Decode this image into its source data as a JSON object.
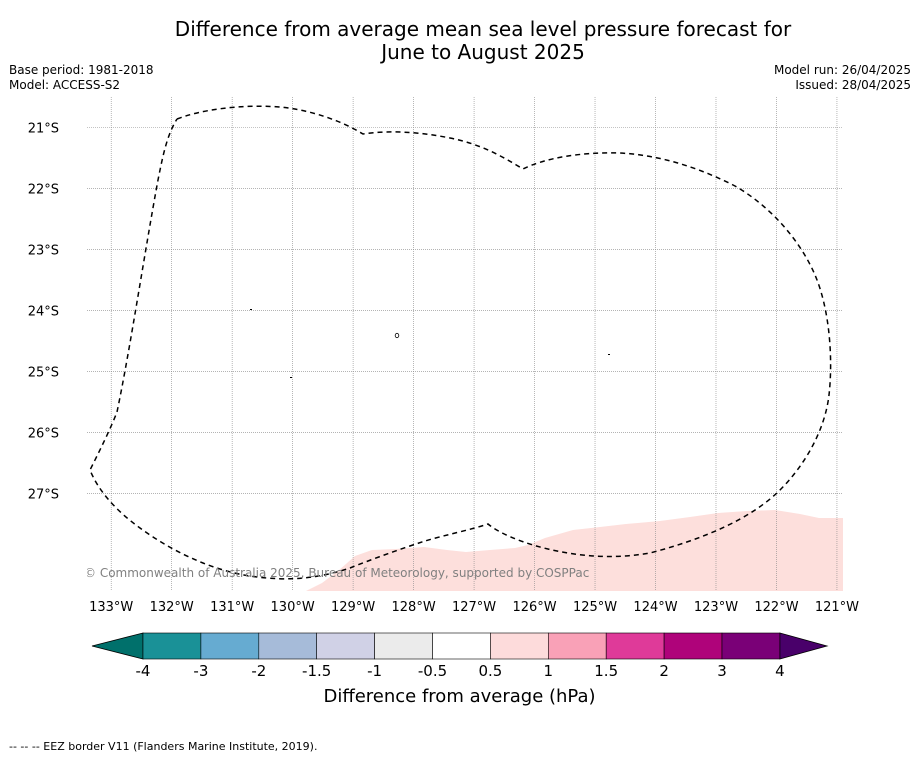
{
  "title_line1": "Difference from average mean sea level pressure forecast for",
  "title_line2": "June to August 2025",
  "meta_left": [
    "Base period: 1981-2018",
    "Model: ACCESS-S2"
  ],
  "meta_right": [
    "Model run: 26/04/2025",
    "Issued: 28/04/2025"
  ],
  "copyright": "© Commonwealth of Australia 2025, Bureau of Meteorology, supported by COSPPac",
  "lat_labels": [
    "21°S",
    "22°S",
    "23°S",
    "24°S",
    "25°S",
    "26°S",
    "27°S"
  ],
  "lon_labels": [
    "133°W",
    "132°W",
    "131°W",
    "130°W",
    "129°W",
    "128°W",
    "127°W",
    "126°W",
    "125°W",
    "124°W",
    "123°W",
    "122°W",
    "121°W"
  ],
  "map_extent": {
    "lon": [
      -133.4,
      -120.9
    ],
    "lat": [
      -28.6,
      -20.5
    ]
  },
  "colorbar": {
    "title": "Difference from average (hPa)",
    "tick_labels": [
      "-4",
      "-3",
      "-2",
      "-1.5",
      "-1",
      "-0.5",
      "0.5",
      "1",
      "1.5",
      "2",
      "3",
      "4"
    ],
    "colors": [
      "#1a9197",
      "#66abd1",
      "#a6bbd9",
      "#d0d1e6",
      "#ebebeb",
      "#ffffff",
      "#fddbdb",
      "#f9a1b7",
      "#df3a99",
      "#af037a",
      "#7a0077"
    ],
    "extend_low_color": "#00706b",
    "extend_high_color": "#49006a"
  },
  "anomaly_fill_color": "#fddfdc",
  "footnote": "--  --  -- EEZ border V11 (Flanders Marine Institute, 2019)."
}
